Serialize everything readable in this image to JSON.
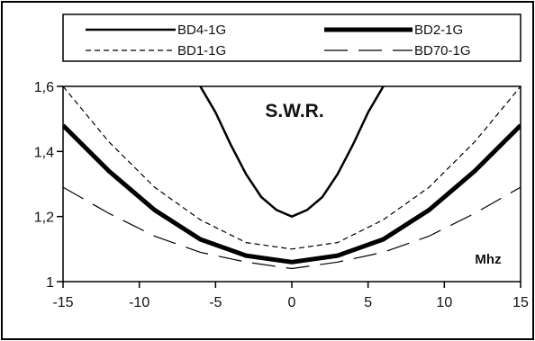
{
  "chart_data": {
    "type": "line",
    "title": "S.W.R.",
    "xlabel": "Mhz",
    "ylabel": "",
    "xlim": [
      -15,
      15
    ],
    "ylim": [
      1,
      1.6
    ],
    "xticks": [
      -15,
      -10,
      -5,
      0,
      5,
      10,
      15
    ],
    "xtick_labels": [
      "-15",
      "-10",
      "-5",
      "0",
      "5",
      "10",
      "15"
    ],
    "yticks": [
      1,
      1.2,
      1.4,
      1.6
    ],
    "ytick_labels": [
      "1",
      "1,2",
      "1,4",
      "1,6"
    ],
    "grid": false,
    "legend_position": "top",
    "series": [
      {
        "name": "BD4-1G",
        "style": "solid",
        "x": [
          -6,
          -5,
          -4,
          -3,
          -2,
          -1,
          0,
          1,
          2,
          3,
          4,
          5,
          6
        ],
        "y": [
          1.6,
          1.52,
          1.42,
          1.33,
          1.26,
          1.22,
          1.2,
          1.22,
          1.26,
          1.33,
          1.42,
          1.52,
          1.6
        ]
      },
      {
        "name": "BD2-1G",
        "style": "bold",
        "x": [
          -15,
          -12,
          -9,
          -6,
          -3,
          0,
          3,
          6,
          9,
          12,
          15
        ],
        "y": [
          1.48,
          1.34,
          1.22,
          1.13,
          1.08,
          1.06,
          1.08,
          1.13,
          1.22,
          1.34,
          1.48
        ]
      },
      {
        "name": "BD1-1G",
        "style": "dashed",
        "x": [
          -15,
          -12,
          -9,
          -6,
          -3,
          0,
          3,
          6,
          9,
          12,
          15
        ],
        "y": [
          1.6,
          1.43,
          1.29,
          1.19,
          1.12,
          1.1,
          1.12,
          1.19,
          1.29,
          1.43,
          1.6
        ]
      },
      {
        "name": "BD70-1G",
        "style": "longdash",
        "x": [
          -15,
          -12,
          -9,
          -6,
          -3,
          0,
          3,
          6,
          9,
          12,
          15
        ],
        "y": [
          1.29,
          1.21,
          1.14,
          1.09,
          1.06,
          1.04,
          1.06,
          1.09,
          1.14,
          1.21,
          1.29
        ]
      }
    ]
  }
}
